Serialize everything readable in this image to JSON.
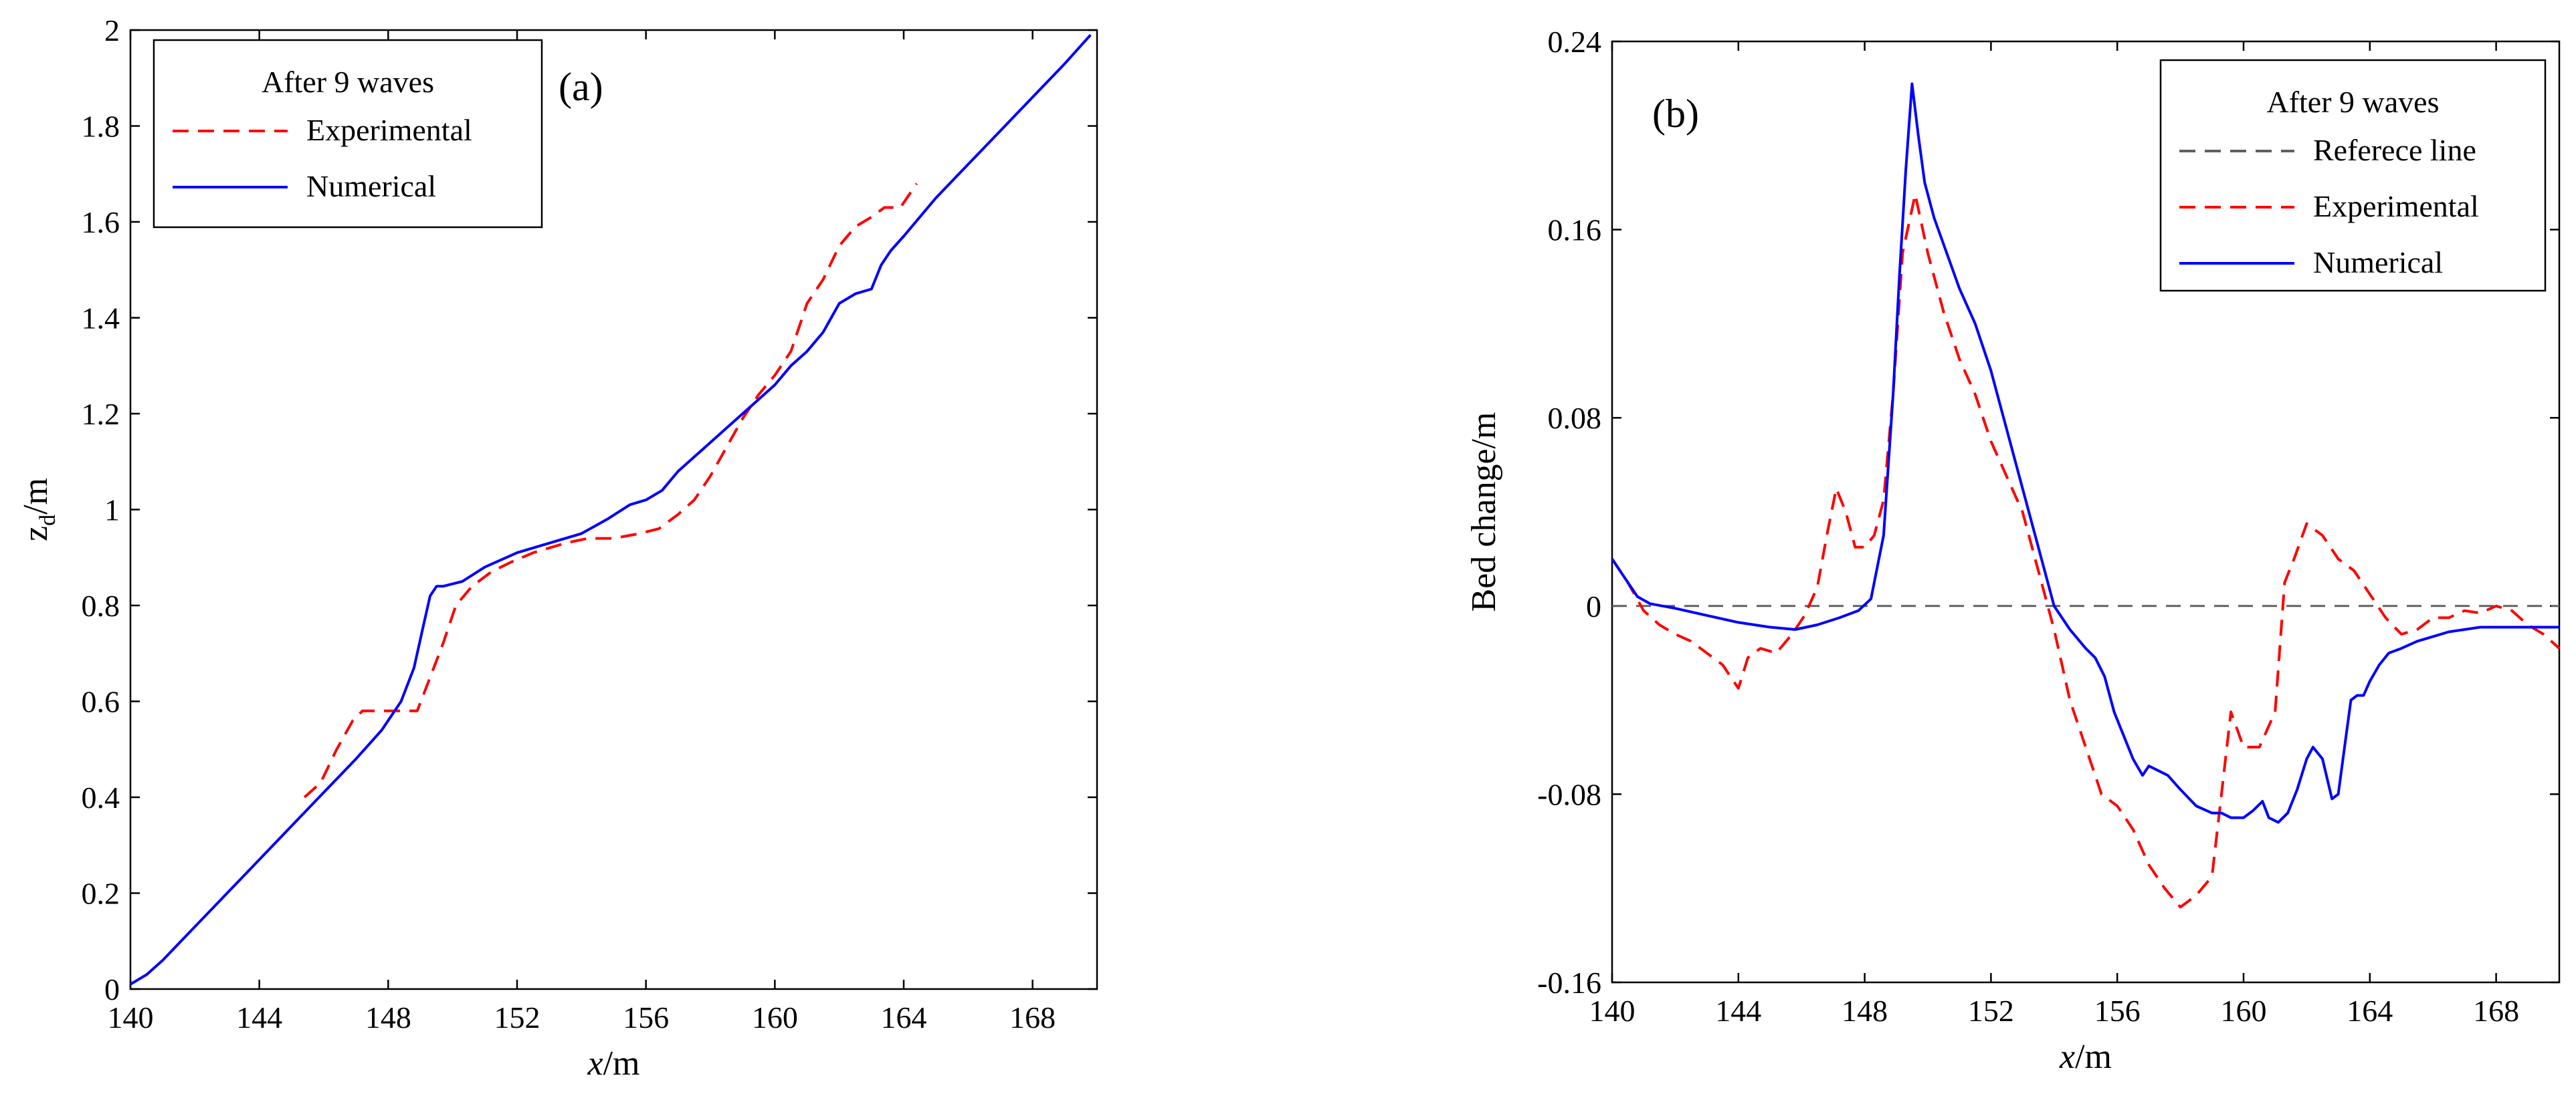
{
  "chart_data": [
    {
      "type": "line",
      "panel_label": "(a)",
      "xlabel_italic": "x",
      "xlabel_unit": "/m",
      "ylabel_main": "z",
      "ylabel_sub": "d",
      "ylabel_unit": "/m",
      "xlim": [
        140,
        170
      ],
      "ylim": [
        0,
        2
      ],
      "xticks": [
        "140",
        "144",
        "148",
        "152",
        "156",
        "160",
        "164",
        "168"
      ],
      "xtick_values": [
        140,
        144,
        148,
        152,
        156,
        160,
        164,
        168
      ],
      "yticks": [
        "0",
        "0.2",
        "0.4",
        "0.6",
        "0.8",
        "1",
        "1.2",
        "1.4",
        "1.6",
        "1.8",
        "2"
      ],
      "ytick_values": [
        0,
        0.2,
        0.4,
        0.6,
        0.8,
        1.0,
        1.2,
        1.4,
        1.6,
        1.8,
        2.0
      ],
      "legend_title": "After 9 waves",
      "legend_position": "top-left",
      "series": [
        {
          "name": "Experimental",
          "style": "dashed",
          "color": "#ff0000",
          "x": [
            145.4,
            145.9,
            146.4,
            146.9,
            147.2,
            147.6,
            148.0,
            148.5,
            148.9,
            149.3,
            149.7,
            150.1,
            150.6,
            151.2,
            151.8,
            152.5,
            153.0,
            153.5,
            154.2,
            155.0,
            155.8,
            156.4,
            157.0,
            157.5,
            158.0,
            158.5,
            159.0,
            159.5,
            160.0,
            160.5,
            161.0,
            161.5,
            162.0,
            162.5,
            163.0,
            163.4,
            163.9,
            164.4
          ],
          "values": [
            0.4,
            0.43,
            0.5,
            0.56,
            0.58,
            0.58,
            0.58,
            0.58,
            0.58,
            0.65,
            0.72,
            0.8,
            0.84,
            0.87,
            0.89,
            0.91,
            0.92,
            0.93,
            0.94,
            0.94,
            0.95,
            0.96,
            0.99,
            1.02,
            1.07,
            1.13,
            1.19,
            1.24,
            1.28,
            1.33,
            1.43,
            1.48,
            1.55,
            1.59,
            1.61,
            1.63,
            1.63,
            1.68
          ]
        },
        {
          "name": "Numerical",
          "style": "solid",
          "color": "#0000ff",
          "x": [
            140.0,
            140.5,
            141.0,
            142.0,
            143.0,
            144.0,
            145.0,
            146.0,
            147.0,
            147.8,
            148.4,
            148.8,
            149.1,
            149.3,
            149.5,
            149.7,
            150.3,
            151.0,
            152.0,
            153.0,
            154.0,
            154.8,
            155.5,
            156.0,
            156.5,
            157.0,
            157.5,
            158.0,
            158.5,
            159.0,
            159.5,
            160.0,
            160.5,
            161.0,
            161.5,
            162.0,
            162.5,
            163.0,
            163.3,
            163.6,
            164.0,
            164.5,
            165.0,
            166.0,
            167.0,
            168.0,
            169.0,
            169.8
          ],
          "values": [
            0.01,
            0.03,
            0.06,
            0.13,
            0.2,
            0.27,
            0.34,
            0.41,
            0.48,
            0.54,
            0.6,
            0.67,
            0.76,
            0.82,
            0.84,
            0.84,
            0.85,
            0.88,
            0.91,
            0.93,
            0.95,
            0.98,
            1.01,
            1.02,
            1.04,
            1.08,
            1.11,
            1.14,
            1.17,
            1.2,
            1.23,
            1.26,
            1.3,
            1.33,
            1.37,
            1.43,
            1.45,
            1.46,
            1.51,
            1.54,
            1.57,
            1.61,
            1.65,
            1.72,
            1.79,
            1.86,
            1.93,
            1.99
          ]
        }
      ]
    },
    {
      "type": "line",
      "panel_label": "(b)",
      "xlabel_italic": "x",
      "xlabel_unit": "/m",
      "ylabel": "Bed change/m",
      "xlim": [
        140,
        170
      ],
      "ylim": [
        -0.16,
        0.24
      ],
      "xticks": [
        "140",
        "144",
        "148",
        "152",
        "156",
        "160",
        "164",
        "168"
      ],
      "xtick_values": [
        140,
        144,
        148,
        152,
        156,
        160,
        164,
        168
      ],
      "yticks": [
        "-0.16",
        "-0.08",
        "0",
        "0.08",
        "0.16",
        "0.24"
      ],
      "ytick_values": [
        -0.16,
        -0.08,
        0,
        0.08,
        0.16,
        0.24
      ],
      "legend_title": "After 9 waves",
      "legend_position": "top-right",
      "series": [
        {
          "name": "Referece line",
          "style": "dashed",
          "color": "#606060",
          "x": [
            140,
            170
          ],
          "values": [
            0,
            0
          ]
        },
        {
          "name": "Experimental",
          "style": "dashed",
          "color": "#ff0000",
          "x": [
            140.0,
            140.5,
            141.0,
            141.5,
            142.0,
            142.5,
            143.0,
            143.5,
            144.0,
            144.3,
            144.7,
            145.2,
            145.7,
            146.1,
            146.5,
            146.8,
            147.1,
            147.4,
            147.7,
            148.0,
            148.3,
            148.6,
            148.9,
            149.2,
            149.6,
            150.0,
            150.5,
            151.0,
            151.5,
            152.0,
            152.5,
            153.0,
            153.5,
            154.0,
            154.5,
            155.0,
            155.5,
            156.0,
            156.5,
            157.0,
            157.5,
            158.0,
            158.5,
            159.0,
            159.3,
            159.6,
            160.0,
            160.5,
            161.0,
            161.3,
            161.6,
            162.0,
            162.5,
            163.0,
            163.5,
            164.0,
            164.5,
            165.0,
            165.5,
            166.0,
            166.5,
            167.0,
            167.5,
            168.0,
            168.5,
            169.0,
            169.5,
            170.0
          ],
          "values": [
            0.02,
            0.01,
            -0.002,
            -0.008,
            -0.012,
            -0.015,
            -0.02,
            -0.025,
            -0.035,
            -0.022,
            -0.018,
            -0.02,
            -0.012,
            -0.004,
            0.008,
            0.03,
            0.05,
            0.04,
            0.025,
            0.025,
            0.03,
            0.045,
            0.09,
            0.15,
            0.175,
            0.15,
            0.125,
            0.105,
            0.09,
            0.07,
            0.055,
            0.04,
            0.015,
            -0.01,
            -0.04,
            -0.06,
            -0.08,
            -0.085,
            -0.095,
            -0.11,
            -0.12,
            -0.128,
            -0.123,
            -0.115,
            -0.08,
            -0.045,
            -0.06,
            -0.06,
            -0.045,
            0.01,
            0.02,
            0.035,
            0.03,
            0.02,
            0.015,
            0.005,
            -0.005,
            -0.012,
            -0.01,
            -0.005,
            -0.005,
            -0.002,
            -0.003,
            0.0,
            -0.002,
            -0.008,
            -0.012,
            -0.018
          ]
        },
        {
          "name": "Numerical",
          "style": "solid",
          "color": "#0000ff",
          "x": [
            140.0,
            140.4,
            140.8,
            141.2,
            141.6,
            142.0,
            143.0,
            144.0,
            145.0,
            145.8,
            146.5,
            147.2,
            147.8,
            148.2,
            148.6,
            148.9,
            149.1,
            149.3,
            149.5,
            149.7,
            149.9,
            150.2,
            150.6,
            151.0,
            151.5,
            152.0,
            152.5,
            153.0,
            153.5,
            154.0,
            154.5,
            155.0,
            155.3,
            155.6,
            155.9,
            156.2,
            156.5,
            156.8,
            157.0,
            157.3,
            157.6,
            158.0,
            158.5,
            159.0,
            159.3,
            159.6,
            160.0,
            160.3,
            160.6,
            160.8,
            161.1,
            161.4,
            161.7,
            162.0,
            162.2,
            162.5,
            162.8,
            163.0,
            163.2,
            163.4,
            163.6,
            163.8,
            164.0,
            164.3,
            164.6,
            165.0,
            165.5,
            166.0,
            166.5,
            167.0,
            167.5,
            168.0,
            169.0,
            170.0
          ],
          "values": [
            0.02,
            0.012,
            0.004,
            0.001,
            0.0,
            -0.001,
            -0.004,
            -0.007,
            -0.009,
            -0.01,
            -0.008,
            -0.005,
            -0.002,
            0.003,
            0.03,
            0.09,
            0.14,
            0.185,
            0.222,
            0.2,
            0.18,
            0.165,
            0.15,
            0.135,
            0.12,
            0.1,
            0.075,
            0.05,
            0.025,
            0.0,
            -0.01,
            -0.018,
            -0.022,
            -0.03,
            -0.045,
            -0.055,
            -0.065,
            -0.072,
            -0.068,
            -0.07,
            -0.072,
            -0.078,
            -0.085,
            -0.088,
            -0.088,
            -0.09,
            -0.09,
            -0.087,
            -0.083,
            -0.09,
            -0.092,
            -0.088,
            -0.078,
            -0.065,
            -0.06,
            -0.065,
            -0.082,
            -0.08,
            -0.06,
            -0.04,
            -0.038,
            -0.038,
            -0.032,
            -0.025,
            -0.02,
            -0.018,
            -0.015,
            -0.013,
            -0.011,
            -0.01,
            -0.009,
            -0.009,
            -0.009,
            -0.009
          ]
        }
      ]
    }
  ]
}
